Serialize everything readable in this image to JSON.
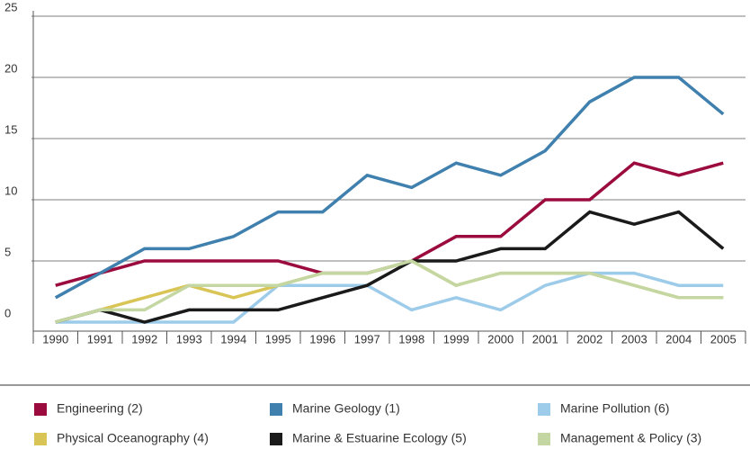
{
  "chart_data": {
    "type": "line",
    "categories": [
      "1990",
      "1991",
      "1992",
      "1993",
      "1994",
      "1995",
      "1996",
      "1997",
      "1998",
      "1999",
      "2000",
      "2001",
      "2002",
      "2003",
      "2004",
      "2005"
    ],
    "series": [
      {
        "name": "Engineering (2)",
        "color": "#9b0b3e",
        "values": [
          3,
          4,
          5,
          5,
          5,
          5,
          4,
          4,
          5,
          7,
          7,
          10,
          10,
          13,
          12,
          13
        ]
      },
      {
        "name": "Marine Geology (1)",
        "color": "#3f80ae",
        "values": [
          2,
          4,
          6,
          6,
          7,
          9,
          9,
          12,
          11,
          13,
          12,
          14,
          18,
          20,
          20,
          17
        ]
      },
      {
        "name": "Marine Pollution (6)",
        "color": "#9dcbea",
        "values": [
          0,
          0,
          0,
          0,
          0,
          3,
          3,
          3,
          1,
          2,
          1,
          3,
          4,
          4,
          3,
          3
        ]
      },
      {
        "name": "Physical Oceanography (4)",
        "color": "#d9c456",
        "values": [
          0,
          1,
          2,
          3,
          2,
          3,
          4,
          4,
          5,
          3,
          4,
          4,
          4,
          3,
          2,
          2
        ]
      },
      {
        "name": "Marine & Estuarine Ecology (5)",
        "color": "#1a1a1a",
        "values": [
          0,
          1,
          0,
          1,
          1,
          1,
          2,
          3,
          5,
          5,
          6,
          6,
          9,
          8,
          9,
          6
        ]
      },
      {
        "name": "Management & Policy (3)",
        "color": "#c4d7a2",
        "values": [
          0,
          1,
          1,
          3,
          3,
          3,
          4,
          4,
          5,
          3,
          4,
          4,
          4,
          3,
          2,
          2
        ]
      }
    ],
    "ylim": [
      0,
      25
    ],
    "yticks": [
      0,
      5,
      10,
      15,
      20,
      25
    ],
    "grid": true
  }
}
